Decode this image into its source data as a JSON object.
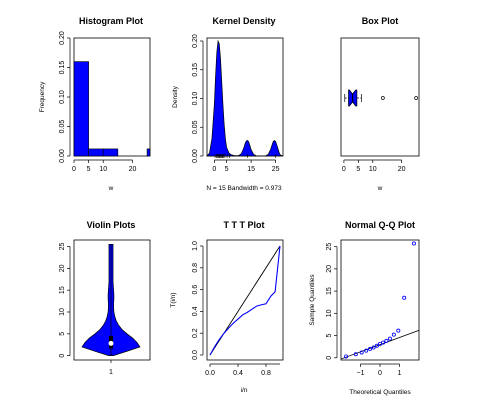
{
  "colors": {
    "fill": "#0000ff",
    "line": "#000000",
    "background": "#ffffff"
  },
  "chart_data": [
    {
      "type": "bar",
      "title": "Histogram Plot",
      "xlabel": "w",
      "ylabel": "Frequency",
      "bins": [
        {
          "from": 0,
          "to": 5,
          "value": 0.16
        },
        {
          "from": 5,
          "to": 10,
          "value": 0.012
        },
        {
          "from": 10,
          "to": 15,
          "value": 0.012
        },
        {
          "from": 15,
          "to": 20,
          "value": 0
        },
        {
          "from": 20,
          "to": 25,
          "value": 0
        },
        {
          "from": 25,
          "to": 30,
          "value": 0.012
        }
      ],
      "xlim": [
        0,
        26
      ],
      "ylim": [
        0,
        0.2
      ],
      "xticks": [
        0,
        5,
        10,
        20
      ],
      "xtick_labels": [
        "0",
        "5",
        "10",
        "20"
      ],
      "yticks": [
        0,
        0.05,
        0.1,
        0.15,
        0.2
      ],
      "ytick_labels": [
        "0.00",
        "0.05",
        "0.10",
        "0.15",
        "0.20"
      ]
    },
    {
      "type": "area",
      "title": "Kernel Density",
      "xlabel": "N = 15   Bandwidth = 0.973",
      "ylabel": "Density",
      "x": [
        -3,
        -2,
        -1,
        0,
        0.5,
        1,
        1.5,
        2,
        2.5,
        3,
        3.5,
        4,
        4.5,
        5,
        6,
        7,
        8,
        9,
        10,
        11,
        12,
        12.5,
        13,
        13.5,
        14,
        14.5,
        15,
        16,
        17,
        18,
        19,
        20,
        21,
        22,
        23,
        23.5,
        24,
        24.5,
        25,
        25.5,
        26,
        26.5,
        27,
        28
      ],
      "y": [
        0.0,
        0.005,
        0.03,
        0.09,
        0.14,
        0.18,
        0.2,
        0.195,
        0.17,
        0.13,
        0.09,
        0.055,
        0.03,
        0.015,
        0.005,
        0.002,
        0.001,
        0.0005,
        0.001,
        0.004,
        0.014,
        0.021,
        0.026,
        0.027,
        0.025,
        0.018,
        0.011,
        0.003,
        0.0005,
        0.0,
        0.0,
        0.0,
        0.0005,
        0.003,
        0.012,
        0.019,
        0.025,
        0.027,
        0.025,
        0.019,
        0.012,
        0.005,
        0.0015,
        0.0
      ],
      "rug": [
        0.3,
        0.8,
        1.2,
        1.6,
        2.0,
        2.3,
        2.7,
        3.1,
        3.4,
        3.8,
        4.3,
        5.2,
        6.1,
        13.5,
        25
      ],
      "xlim": [
        -3,
        28
      ],
      "ylim": [
        0,
        0.2
      ],
      "xticks": [
        0,
        5,
        15,
        25
      ],
      "xtick_labels": [
        "0",
        "5",
        "15",
        "25"
      ],
      "yticks": [
        0,
        0.05,
        0.1,
        0.15,
        0.2
      ],
      "ytick_labels": [
        "0.00",
        "0.05",
        "0.10",
        "0.15",
        "0.20"
      ]
    },
    {
      "type": "box",
      "title": "Box Plot",
      "xlabel": "w",
      "min": 0.3,
      "q1": 1.6,
      "median": 3.0,
      "q3": 4.5,
      "max": 6.1,
      "notch_low": 1.9,
      "notch_high": 4.1,
      "outliers": [
        13.5,
        25
      ],
      "xlim": [
        -1,
        26
      ],
      "xticks": [
        0,
        5,
        10,
        20
      ],
      "xtick_labels": [
        "0",
        "5",
        "10",
        "20"
      ]
    },
    {
      "type": "violin",
      "title": "Violin Plots",
      "category": "1",
      "y": [
        0.0,
        1,
        2,
        3,
        4,
        5,
        6,
        7,
        8,
        9,
        10,
        11,
        12,
        13,
        14,
        15,
        16,
        17,
        18,
        19,
        20,
        21,
        22,
        23,
        24,
        25.5
      ],
      "width": [
        0.08,
        0.55,
        1.0,
        0.9,
        0.75,
        0.55,
        0.38,
        0.26,
        0.18,
        0.13,
        0.1,
        0.09,
        0.09,
        0.1,
        0.1,
        0.09,
        0.08,
        0.07,
        0.07,
        0.07,
        0.07,
        0.07,
        0.07,
        0.07,
        0.07,
        0.07
      ],
      "median": 2.8,
      "q1": 1.6,
      "q3": 4.5,
      "ylim": [
        -1,
        26.5
      ],
      "yticks": [
        0,
        5,
        10,
        15,
        20,
        25
      ],
      "ytick_labels": [
        "0",
        "5",
        "10",
        "15",
        "20",
        "25"
      ]
    },
    {
      "type": "line",
      "title": "T T T Plot",
      "xlabel": "i/n",
      "ylabel": "T(i/n)",
      "diagonal": [
        [
          0,
          0
        ],
        [
          1,
          1
        ]
      ],
      "series": [
        {
          "x": [
            0,
            0.07,
            0.13,
            0.2,
            0.27,
            0.33,
            0.4,
            0.47,
            0.53,
            0.6,
            0.67,
            0.73,
            0.8,
            0.87,
            0.93,
            1.0
          ],
          "y": [
            0,
            0.08,
            0.14,
            0.2,
            0.25,
            0.29,
            0.33,
            0.37,
            0.39,
            0.42,
            0.45,
            0.46,
            0.47,
            0.54,
            0.58,
            1.0
          ]
        }
      ],
      "xlim": [
        0,
        1
      ],
      "ylim": [
        0,
        1
      ],
      "xticks": [
        0,
        0.4,
        0.8
      ],
      "xtick_labels": [
        "0.0",
        "0.4",
        "0.8"
      ],
      "yticks": [
        0,
        0.2,
        0.4,
        0.6,
        0.8,
        1.0
      ],
      "ytick_labels": [
        "0.0",
        "0.2",
        "0.4",
        "0.6",
        "0.8",
        "1.0"
      ]
    },
    {
      "type": "scatter",
      "title": "Normal Q-Q Plot",
      "xlabel": "Theoretical Quantiles",
      "ylabel": "Sample Quantiles",
      "x": [
        -1.74,
        -1.24,
        -0.94,
        -0.71,
        -0.51,
        -0.33,
        -0.16,
        0.0,
        0.16,
        0.33,
        0.51,
        0.71,
        0.94,
        1.24,
        1.74
      ],
      "y": [
        0.3,
        0.8,
        1.2,
        1.6,
        2.0,
        2.3,
        2.7,
        3.1,
        3.4,
        3.8,
        4.3,
        5.2,
        6.1,
        13.5,
        25.7
      ],
      "line": [
        [
          -2.2,
          -0.6
        ],
        [
          2.2,
          6.5
        ]
      ],
      "xlim": [
        -2.0,
        2.0
      ],
      "ylim": [
        -0.5,
        26.5
      ],
      "xticks": [
        -1,
        0,
        1
      ],
      "xtick_labels": [
        "−1",
        "0",
        "1"
      ],
      "yticks": [
        0,
        5,
        10,
        15,
        20,
        25
      ],
      "ytick_labels": [
        "0",
        "5",
        "10",
        "15",
        "20",
        "25"
      ]
    }
  ]
}
